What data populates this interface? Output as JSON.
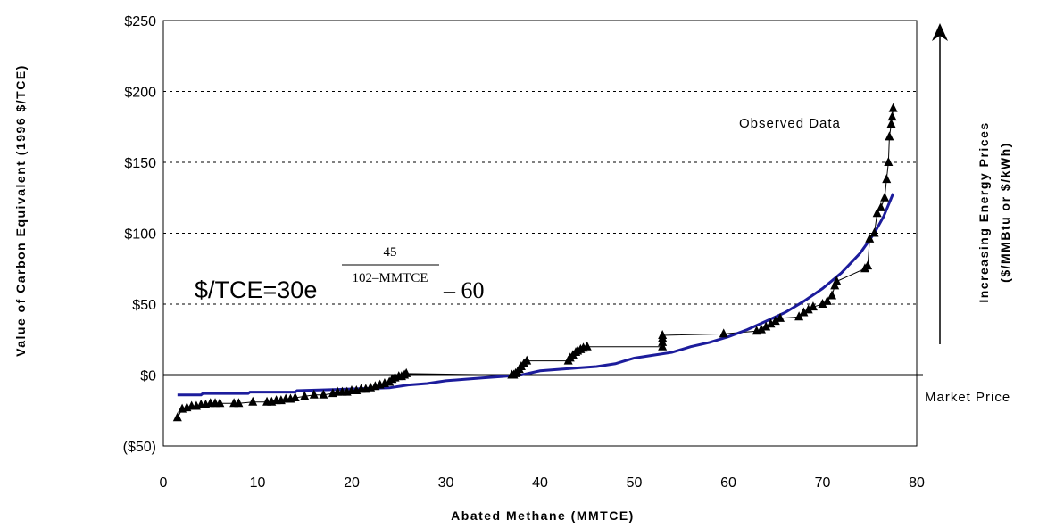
{
  "chart_data": {
    "type": "scatter",
    "xlabel": "Abated Methane (MMTCE)",
    "ylabel": "Value of Carbon Equivalent (1996 $/TCE)",
    "right_label_line1": "Increasing Energy Prices",
    "right_label_line2": "($/MMBtu or $/kWh)",
    "xlim": [
      0,
      80
    ],
    "ylim": [
      -50,
      250
    ],
    "x_ticks": [
      0,
      10,
      20,
      30,
      40,
      50,
      60,
      70,
      80
    ],
    "y_ticks": [
      -50,
      0,
      50,
      100,
      150,
      200,
      250
    ],
    "y_tick_labels": [
      "($50)",
      "$0",
      "$50",
      "$100",
      "$150",
      "$200",
      "$250"
    ],
    "negative_tick_color": "#e0401a",
    "grid": "horizontal dashed",
    "market_price": {
      "label": "Market Price",
      "y": 0
    },
    "observed_label": "Observed Data",
    "formula": {
      "lhs": "$/TCE=30e",
      "numerator": "45",
      "denominator": "102–MMTCE",
      "tail": "– 60"
    },
    "series": [
      {
        "name": "Observed Data",
        "color": "#000000",
        "marker": "triangle",
        "points": [
          [
            1.5,
            -30
          ],
          [
            2,
            -24
          ],
          [
            2.5,
            -23
          ],
          [
            3,
            -22
          ],
          [
            3.5,
            -22
          ],
          [
            4,
            -21
          ],
          [
            4.5,
            -21
          ],
          [
            5,
            -20
          ],
          [
            5.5,
            -20
          ],
          [
            6,
            -20
          ],
          [
            7.5,
            -20
          ],
          [
            8,
            -20
          ],
          [
            9.5,
            -19
          ],
          [
            11,
            -19
          ],
          [
            11.5,
            -19
          ],
          [
            12,
            -18
          ],
          [
            12.5,
            -18
          ],
          [
            13,
            -17
          ],
          [
            13.5,
            -17
          ],
          [
            14,
            -16
          ],
          [
            15,
            -15
          ],
          [
            16,
            -14
          ],
          [
            17,
            -14
          ],
          [
            18,
            -13
          ],
          [
            18.5,
            -12
          ],
          [
            19,
            -12
          ],
          [
            19.5,
            -12
          ],
          [
            20,
            -11
          ],
          [
            20.5,
            -11
          ],
          [
            21,
            -10
          ],
          [
            21.5,
            -10
          ],
          [
            22,
            -9
          ],
          [
            22.5,
            -8
          ],
          [
            23,
            -7
          ],
          [
            23.5,
            -6
          ],
          [
            24,
            -5
          ],
          [
            24.3,
            -3
          ],
          [
            24.6,
            -2
          ],
          [
            25,
            -1
          ],
          [
            25.3,
            -1
          ],
          [
            25.6,
            0
          ],
          [
            25.8,
            1
          ],
          [
            37,
            0
          ],
          [
            37.2,
            0
          ],
          [
            37.4,
            1
          ],
          [
            37.6,
            2
          ],
          [
            37.8,
            4
          ],
          [
            38,
            6
          ],
          [
            38.3,
            8
          ],
          [
            38.6,
            10
          ],
          [
            43,
            10
          ],
          [
            43.2,
            12
          ],
          [
            43.5,
            14
          ],
          [
            43.8,
            16
          ],
          [
            44,
            17
          ],
          [
            44.3,
            18
          ],
          [
            44.6,
            19
          ],
          [
            45,
            20
          ],
          [
            53,
            20
          ],
          [
            53,
            23
          ],
          [
            53,
            26
          ],
          [
            53,
            28
          ],
          [
            59.5,
            29
          ],
          [
            63,
            31
          ],
          [
            63.5,
            32
          ],
          [
            64,
            34
          ],
          [
            64.5,
            36
          ],
          [
            65,
            38
          ],
          [
            65.5,
            40
          ],
          [
            67.5,
            41
          ],
          [
            68,
            44
          ],
          [
            68.5,
            46
          ],
          [
            69,
            48
          ],
          [
            70,
            50
          ],
          [
            70.5,
            52
          ],
          [
            71,
            56
          ],
          [
            71.3,
            63
          ],
          [
            71.5,
            66
          ],
          [
            74.5,
            75
          ],
          [
            74.8,
            77
          ],
          [
            75,
            96
          ],
          [
            75.5,
            100
          ],
          [
            75.8,
            114
          ],
          [
            76.2,
            118
          ],
          [
            76.6,
            125
          ],
          [
            76.8,
            138
          ],
          [
            77,
            150
          ],
          [
            77.1,
            168
          ],
          [
            77.3,
            177
          ],
          [
            77.4,
            182
          ],
          [
            77.5,
            188
          ]
        ]
      },
      {
        "name": "Fitted Curve",
        "color": "#1c1c9c",
        "marker": "line",
        "points": [
          [
            1.5,
            -14
          ],
          [
            4,
            -14
          ],
          [
            4.2,
            -13
          ],
          [
            9,
            -13
          ],
          [
            9.2,
            -12
          ],
          [
            14,
            -12
          ],
          [
            14.2,
            -11
          ],
          [
            19,
            -10
          ],
          [
            24,
            -9
          ],
          [
            26,
            -7
          ],
          [
            28,
            -6
          ],
          [
            30,
            -4
          ],
          [
            32,
            -3
          ],
          [
            34,
            -2
          ],
          [
            36,
            -1
          ],
          [
            38,
            0
          ],
          [
            40,
            3
          ],
          [
            42,
            4
          ],
          [
            44,
            5
          ],
          [
            46,
            6
          ],
          [
            47,
            7
          ],
          [
            48,
            8
          ],
          [
            49,
            10
          ],
          [
            50,
            12
          ],
          [
            51,
            13
          ],
          [
            52,
            14
          ],
          [
            54,
            16
          ],
          [
            56,
            20
          ],
          [
            58,
            23
          ],
          [
            60,
            27
          ],
          [
            62,
            32
          ],
          [
            64,
            38
          ],
          [
            66,
            44
          ],
          [
            68,
            52
          ],
          [
            70,
            61
          ],
          [
            72,
            72
          ],
          [
            74,
            86
          ],
          [
            75.5,
            100
          ],
          [
            76.5,
            112
          ],
          [
            77.5,
            128
          ]
        ]
      }
    ]
  }
}
